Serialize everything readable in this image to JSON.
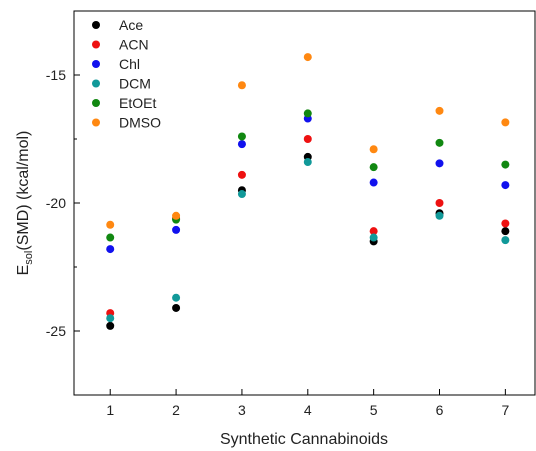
{
  "chart_data": {
    "type": "scatter",
    "xlabel": "Synthetic Cannabinoids",
    "ylabel_main": "E",
    "ylabel_sub": "sol",
    "ylabel_rest": "(SMD)  (kcal/mol)",
    "x": [
      1,
      2,
      3,
      4,
      5,
      6,
      7
    ],
    "xlim": [
      0.45,
      7.45
    ],
    "ylim": [
      -27.5,
      -12.5
    ],
    "xticks": [
      "1",
      "2",
      "3",
      "4",
      "5",
      "6",
      "7"
    ],
    "yticks": [
      "-25",
      "-20",
      "-15"
    ],
    "ytick_values": [
      -25,
      -20,
      -15
    ],
    "legend_position": "top-left",
    "series": [
      {
        "name": "Ace",
        "color": "#000000",
        "values": [
          -24.8,
          -24.1,
          -19.5,
          -18.2,
          -21.5,
          -20.4,
          -21.1
        ]
      },
      {
        "name": "ACN",
        "color": "#ee1111",
        "values": [
          -24.3,
          -20.6,
          -18.9,
          -17.5,
          -21.1,
          -20.0,
          -20.8
        ]
      },
      {
        "name": "Chl",
        "color": "#1111ee",
        "values": [
          -21.8,
          -21.05,
          -17.7,
          -16.7,
          -19.2,
          -18.45,
          -19.3
        ]
      },
      {
        "name": "DCM",
        "color": "#119999",
        "values": [
          -24.5,
          -23.7,
          -19.65,
          -18.4,
          -21.35,
          -20.5,
          -21.45
        ]
      },
      {
        "name": "EtOEt",
        "color": "#118811",
        "values": [
          -21.35,
          -20.65,
          -17.4,
          -16.5,
          -18.6,
          -17.65,
          -18.5
        ]
      },
      {
        "name": "DMSO",
        "color": "#ff8811",
        "values": [
          -20.85,
          -20.5,
          -15.4,
          -14.3,
          -17.9,
          -16.4,
          -16.85
        ]
      }
    ]
  }
}
